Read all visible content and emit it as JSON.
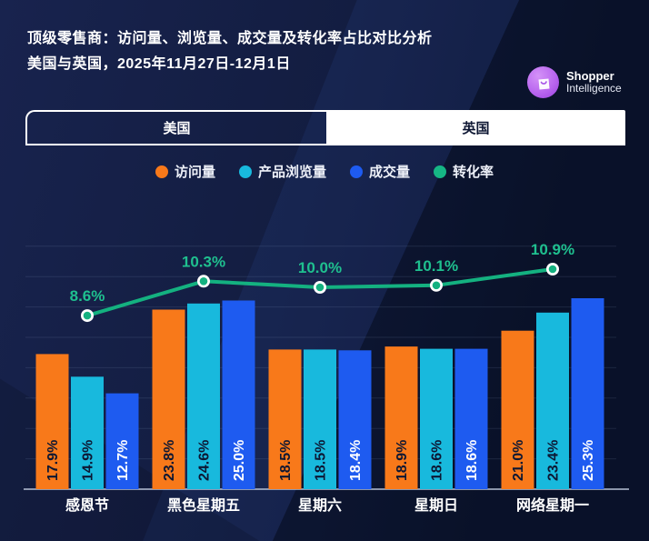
{
  "header": {
    "title": "顶级零售商：访问量、浏览量、成交量及转化率占比对比分析",
    "subtitle": "美国与英国，2025年11月27日-12月1日",
    "logo": {
      "line1": "Shopper",
      "line2": "Intelligence",
      "icon": "shopping-bag-icon",
      "brand_color": "#b966ef"
    }
  },
  "tabs": [
    {
      "label": "美国",
      "selected": true
    },
    {
      "label": "英国",
      "selected": false
    }
  ],
  "legend": [
    {
      "label": "访问量",
      "color": "#f8791a"
    },
    {
      "label": "产品浏览量",
      "color": "#18b9dd"
    },
    {
      "label": "成交量",
      "color": "#1e5bf0"
    },
    {
      "label": "转化率",
      "color": "#16b685"
    }
  ],
  "chart_data": {
    "type": "bar",
    "subtype": "grouped-bars-with-line",
    "categories": [
      "感恩节",
      "黑色星期五",
      "星期六",
      "星期日",
      "网络星期一"
    ],
    "series": [
      {
        "name": "访问量",
        "type": "bar",
        "color": "#f8791a",
        "label_color": "#0d1733",
        "values": [
          17.9,
          23.8,
          18.5,
          18.9,
          21.0
        ]
      },
      {
        "name": "产品浏览量",
        "type": "bar",
        "color": "#18b9dd",
        "label_color": "#0d1733",
        "values": [
          14.9,
          24.6,
          18.5,
          18.6,
          23.4
        ]
      },
      {
        "name": "成交量",
        "type": "bar",
        "color": "#1e5bf0",
        "label_color": "#ffffff",
        "values": [
          12.7,
          25.0,
          18.4,
          18.6,
          25.3
        ]
      },
      {
        "name": "转化率",
        "type": "line",
        "color": "#14b180",
        "label_color": "#1fc08f",
        "values": [
          8.6,
          10.3,
          10.0,
          10.1,
          10.9
        ]
      }
    ],
    "value_format": "percent-1-decimal",
    "grid": true,
    "legend_position": "top-center",
    "axis_labels_visible": false
  }
}
